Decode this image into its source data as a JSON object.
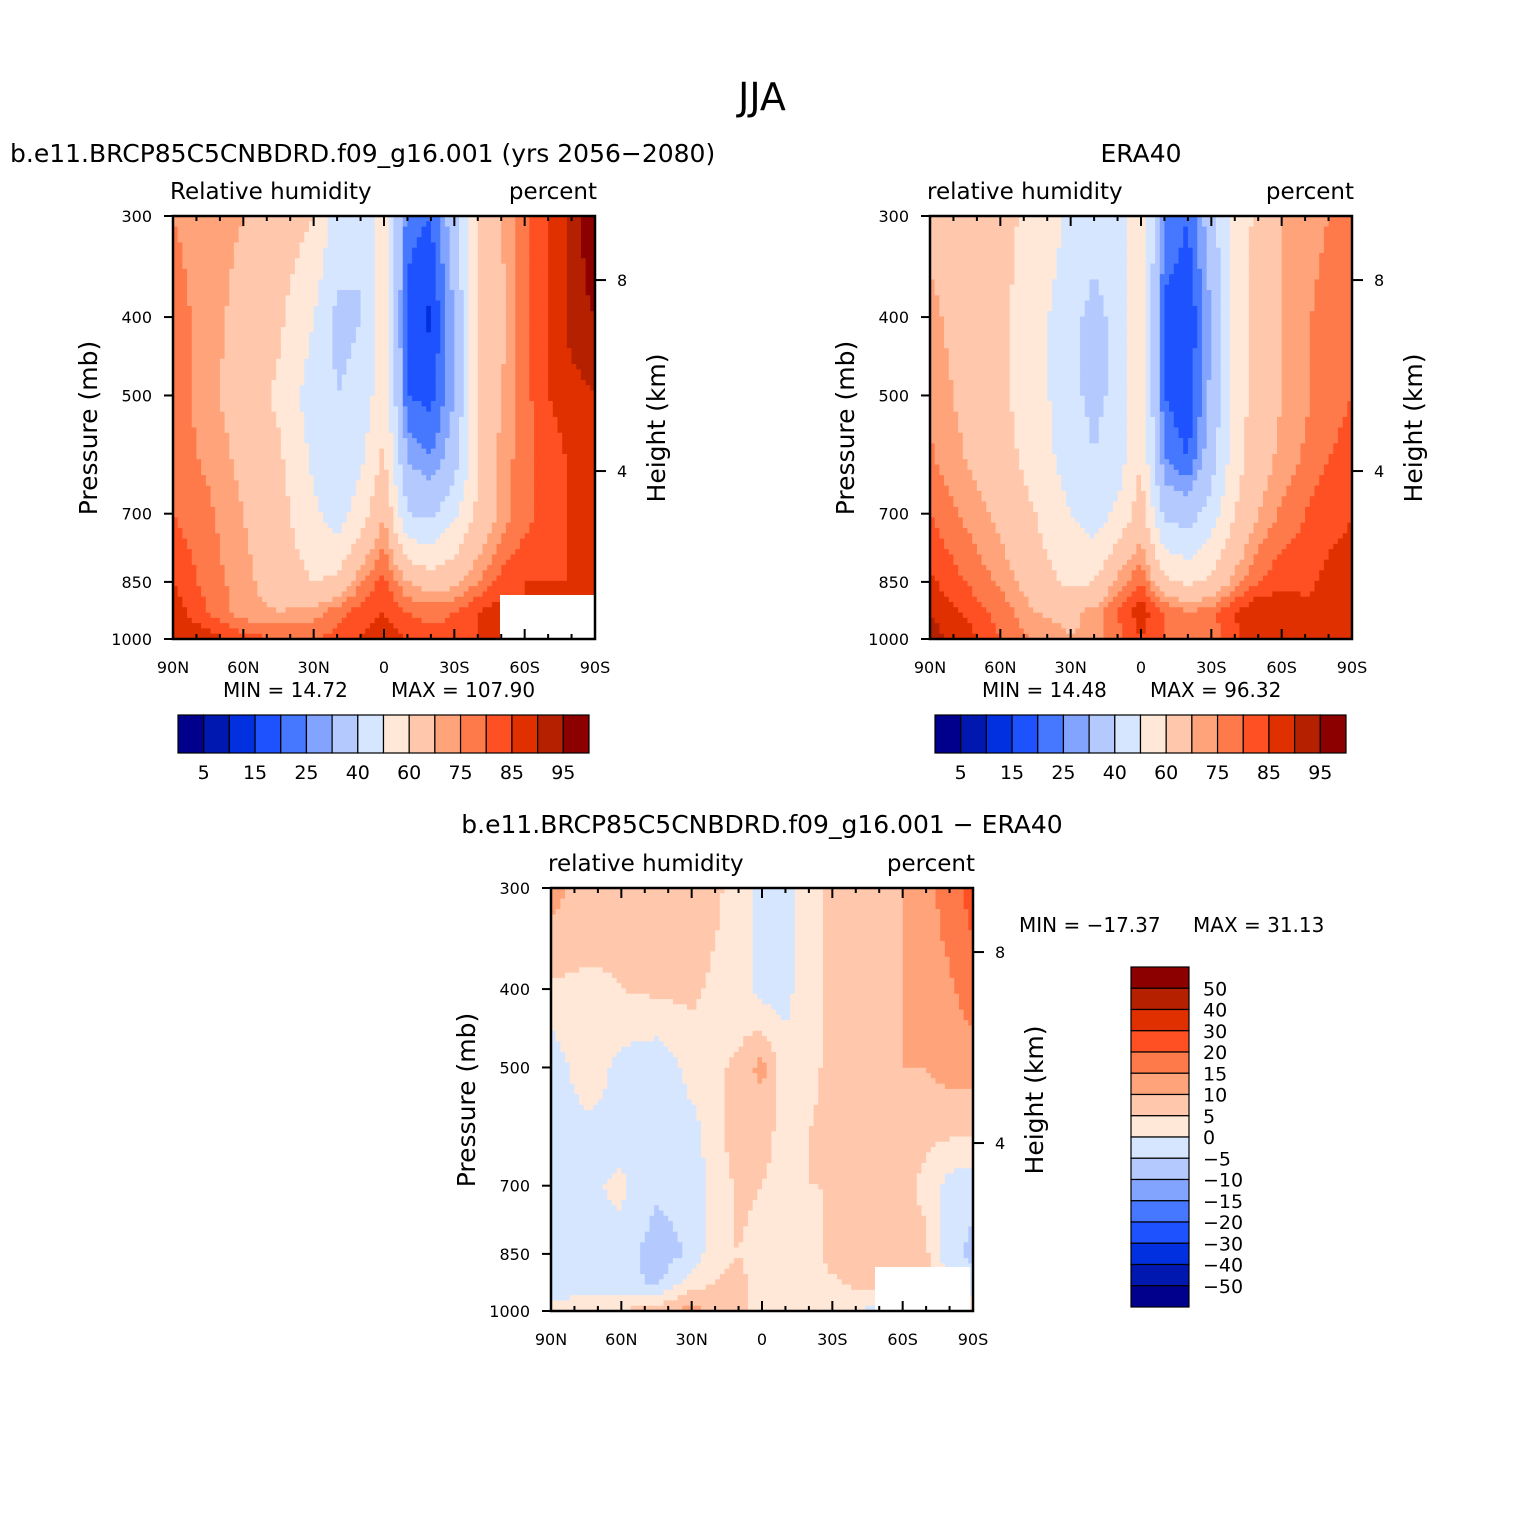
{
  "figure_title": "JJA",
  "palettes": {
    "rh": [
      "#00008c",
      "#0018b0",
      "#0030e0",
      "#1e52ff",
      "#4678ff",
      "#82a4ff",
      "#b4caff",
      "#d6e6ff",
      "#ffe8d8",
      "#ffc8ac",
      "#ffa47a",
      "#ff7a4a",
      "#ff5024",
      "#e03000",
      "#b42000",
      "#8c0000"
    ],
    "diff": [
      "#00008c",
      "#0018b0",
      "#0030e0",
      "#1e52ff",
      "#4678ff",
      "#82a4ff",
      "#b4caff",
      "#d6e6ff",
      "#ffe8d8",
      "#ffc8ac",
      "#ffa47a",
      "#ff7a4a",
      "#ff5024",
      "#e03000",
      "#b42000",
      "#8c0000"
    ]
  },
  "chart_data": [
    {
      "type": "heatmap",
      "title": "b.e11.BRCP85C5CNBDRD.f09_g16.001 (yrs 2056−2080)",
      "left_string": "Relative  humidity",
      "right_string": "percent",
      "xlabel": "",
      "ylabel": "Pressure  (mb)",
      "y2label": "Height  (km)",
      "x_ticks": [
        "90N",
        "60N",
        "30N",
        "0",
        "30S",
        "60S",
        "90S"
      ],
      "y_ticks": [
        "300",
        "400",
        "500",
        "700",
        "850",
        "1000"
      ],
      "y2_ticks": [
        "8",
        "4"
      ],
      "min_label": "MIN  =    14.72",
      "max_label": "MAX  =  107.90",
      "xlim": [
        90,
        -90
      ],
      "ylim": [
        1000,
        300
      ],
      "x": [
        90,
        75,
        60,
        45,
        30,
        20,
        10,
        0,
        -10,
        -20,
        -30,
        -40,
        -50,
        -60,
        -70,
        -80,
        -90
      ],
      "y": [
        300,
        400,
        500,
        600,
        700,
        850,
        925,
        1000
      ],
      "z": [
        [
          75,
          72,
          70,
          66,
          60,
          45,
          40,
          55,
          22,
          20,
          35,
          60,
          70,
          78,
          85,
          92,
          100
        ],
        [
          78,
          72,
          68,
          62,
          50,
          38,
          40,
          55,
          18,
          14,
          30,
          60,
          68,
          78,
          85,
          92,
          95
        ],
        [
          78,
          72,
          66,
          58,
          45,
          40,
          42,
          58,
          20,
          18,
          30,
          60,
          70,
          78,
          85,
          88,
          90
        ],
        [
          78,
          74,
          68,
          62,
          48,
          42,
          48,
          62,
          30,
          25,
          35,
          60,
          72,
          78,
          82,
          86,
          88
        ],
        [
          80,
          76,
          70,
          64,
          52,
          45,
          55,
          70,
          40,
          38,
          48,
          62,
          72,
          78,
          82,
          86,
          88
        ],
        [
          85,
          78,
          72,
          66,
          60,
          62,
          75,
          82,
          70,
          65,
          68,
          75,
          82,
          85,
          85,
          85,
          85
        ],
        [
          88,
          80,
          72,
          70,
          72,
          78,
          82,
          85,
          80,
          78,
          80,
          85,
          88,
          85,
          85,
          85,
          85
        ],
        [
          90,
          88,
          82,
          80,
          80,
          82,
          85,
          88,
          85,
          82,
          82,
          85,
          88,
          85,
          85,
          85,
          85
        ]
      ],
      "levels": [
        5,
        10,
        15,
        20,
        25,
        30,
        40,
        50,
        60,
        70,
        75,
        80,
        85,
        90,
        95
      ],
      "colorbar_labels": [
        "5",
        "15",
        "25",
        "40",
        "60",
        "75",
        "85",
        "95"
      ]
    },
    {
      "type": "heatmap",
      "title": "ERA40",
      "left_string": "relative  humidity",
      "right_string": "percent",
      "xlabel": "",
      "ylabel": "Pressure  (mb)",
      "y2label": "Height  (km)",
      "x_ticks": [
        "90N",
        "60N",
        "30N",
        "0",
        "30S",
        "60S",
        "90S"
      ],
      "y_ticks": [
        "300",
        "400",
        "500",
        "700",
        "850",
        "1000"
      ],
      "y2_ticks": [
        "8",
        "4"
      ],
      "min_label": "MIN  =    14.48",
      "max_label": "MAX  =    96.32",
      "xlim": [
        90,
        -90
      ],
      "ylim": [
        1000,
        300
      ],
      "x": [
        90,
        75,
        60,
        45,
        30,
        20,
        10,
        0,
        -10,
        -20,
        -30,
        -40,
        -50,
        -60,
        -70,
        -80,
        -90
      ],
      "y": [
        300,
        400,
        500,
        600,
        700,
        850,
        925,
        1000
      ],
      "z": [
        [
          68,
          65,
          62,
          58,
          48,
          42,
          45,
          58,
          25,
          20,
          35,
          55,
          62,
          70,
          72,
          75,
          78
        ],
        [
          72,
          66,
          62,
          55,
          42,
          38,
          42,
          58,
          18,
          15,
          30,
          55,
          64,
          70,
          74,
          78,
          80
        ],
        [
          74,
          68,
          62,
          55,
          42,
          38,
          42,
          58,
          20,
          16,
          32,
          55,
          64,
          70,
          74,
          78,
          80
        ],
        [
          76,
          70,
          64,
          56,
          45,
          40,
          45,
          60,
          25,
          20,
          35,
          56,
          66,
          72,
          76,
          80,
          82
        ],
        [
          80,
          74,
          68,
          60,
          50,
          45,
          52,
          65,
          38,
          35,
          45,
          60,
          70,
          76,
          80,
          84,
          85
        ],
        [
          86,
          80,
          74,
          65,
          58,
          60,
          72,
          80,
          62,
          58,
          62,
          72,
          80,
          84,
          84,
          86,
          86
        ],
        [
          90,
          84,
          78,
          70,
          68,
          72,
          80,
          88,
          80,
          75,
          78,
          85,
          90,
          88,
          86,
          86,
          88
        ],
        [
          92,
          88,
          80,
          74,
          70,
          72,
          78,
          85,
          80,
          76,
          78,
          84,
          88,
          88,
          86,
          86,
          90
        ]
      ],
      "levels": [
        5,
        10,
        15,
        20,
        25,
        30,
        40,
        50,
        60,
        70,
        75,
        80,
        85,
        90,
        95
      ],
      "colorbar_labels": [
        "5",
        "15",
        "25",
        "40",
        "60",
        "75",
        "85",
        "95"
      ]
    },
    {
      "type": "heatmap",
      "title": "b.e11.BRCP85C5CNBDRD.f09_g16.001  −  ERA40",
      "left_string": "relative  humidity",
      "right_string": "percent",
      "xlabel": "",
      "ylabel": "Pressure  (mb)",
      "y2label": "Height  (km)",
      "x_ticks": [
        "90N",
        "60N",
        "30N",
        "0",
        "30S",
        "60S",
        "90S"
      ],
      "y_ticks": [
        "300",
        "400",
        "500",
        "700",
        "850",
        "1000"
      ],
      "y2_ticks": [
        "8",
        "4"
      ],
      "min_label": "MIN  =  −17.37",
      "max_label": "MAX  =    31.13",
      "xlim": [
        90,
        -90
      ],
      "ylim": [
        1000,
        300
      ],
      "x": [
        90,
        75,
        60,
        45,
        30,
        20,
        10,
        0,
        -10,
        -20,
        -30,
        -40,
        -50,
        -60,
        -70,
        -80,
        -90
      ],
      "y": [
        300,
        400,
        500,
        600,
        700,
        850,
        925,
        1000
      ],
      "z": [
        [
          12,
          8,
          6,
          6,
          8,
          6,
          3,
          -2,
          -2,
          4,
          6,
          6,
          8,
          10,
          13,
          18,
          22
        ],
        [
          4,
          4,
          5,
          6,
          6,
          4,
          2,
          -2,
          -2,
          4,
          6,
          6,
          6,
          10,
          12,
          14,
          18
        ],
        [
          -4,
          4,
          -2,
          -4,
          2,
          4,
          6,
          12,
          2,
          4,
          6,
          6,
          8,
          10,
          10,
          12,
          12
        ],
        [
          -4,
          -2,
          -2,
          -3,
          -2,
          3,
          8,
          6,
          4,
          5,
          6,
          6,
          8,
          8,
          6,
          6,
          6
        ],
        [
          -3,
          -1,
          1,
          -4,
          -3,
          2,
          6,
          5,
          4,
          5,
          5,
          6,
          7,
          6,
          4,
          -2,
          -4
        ],
        [
          -2,
          -1,
          -2,
          -8,
          -4,
          4,
          5,
          3,
          2,
          3,
          7,
          7,
          9,
          7,
          6,
          -4,
          -6
        ],
        [
          -4,
          -2,
          -3,
          -6,
          3,
          5,
          6,
          4,
          2,
          3,
          4,
          6,
          6,
          6,
          6,
          0,
          -4
        ],
        [
          2,
          4,
          5,
          8,
          12,
          8,
          6,
          3,
          3,
          4,
          2,
          0,
          -2,
          4,
          4,
          4,
          4
        ]
      ],
      "levels": [
        -50,
        -40,
        -30,
        -20,
        -15,
        -10,
        -5,
        0,
        5,
        10,
        15,
        20,
        30,
        40,
        50
      ],
      "colorbar_labels": [
        "50",
        "40",
        "30",
        "20",
        "15",
        "10",
        "5",
        "0",
        "−5",
        "−10",
        "−15",
        "−20",
        "−30",
        "−40",
        "−50"
      ]
    }
  ]
}
